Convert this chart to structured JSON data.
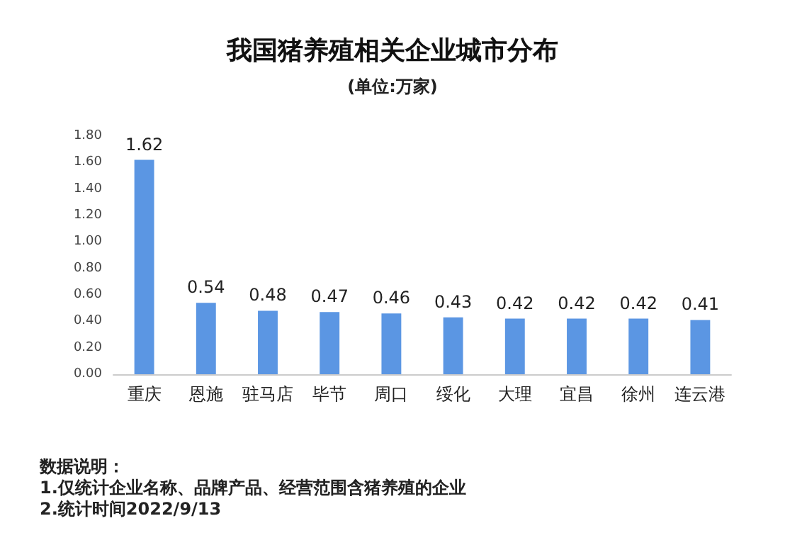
{
  "chart_data": {
    "type": "bar",
    "title": "我国猪养殖相关企业城市分布",
    "subtitle": "(单位:万家)",
    "categories": [
      "重庆",
      "恩施",
      "驻马店",
      "毕节",
      "周口",
      "绥化",
      "大理",
      "宜昌",
      "徐州",
      "连云港"
    ],
    "values": [
      1.62,
      0.54,
      0.48,
      0.47,
      0.46,
      0.43,
      0.42,
      0.42,
      0.42,
      0.41
    ],
    "color": "#5b96e3",
    "data_labels": true,
    "grid": false,
    "ylim": [
      0,
      1.8
    ],
    "yticks": [
      {
        "value": 0,
        "label": "0.00"
      },
      {
        "value": 0.2,
        "label": "0.20"
      },
      {
        "value": 0.4,
        "label": "0.40"
      },
      {
        "value": 0.6,
        "label": "0.60"
      },
      {
        "value": 0.8,
        "label": "0.80"
      },
      {
        "value": 1,
        "label": "1.00"
      },
      {
        "value": 1.2,
        "label": "1.20"
      },
      {
        "value": 1.4,
        "label": "1.40"
      },
      {
        "value": 1.6,
        "label": "1.60"
      },
      {
        "value": 1.8,
        "label": "1.80"
      }
    ],
    "annotations": [
      "数据说明：",
      "1.仅统计企业名称、品牌产品、经营范围含猪养殖的企业",
      "2.统计时间2022/9/13"
    ]
  }
}
